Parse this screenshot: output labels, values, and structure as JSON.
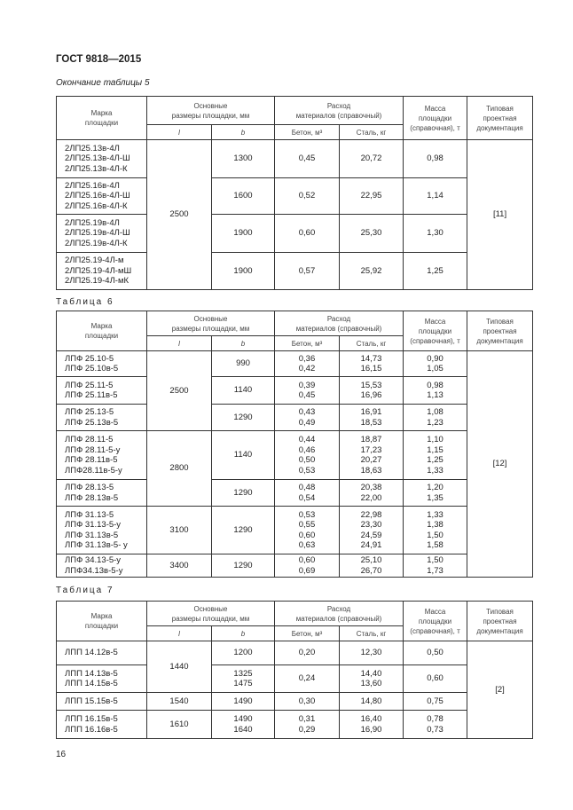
{
  "header": "ГОСТ 9818—2015",
  "page_number": "16",
  "columns": {
    "mark": "Марка\nплощадки",
    "dims": "Основные\nразмеры площадки, мм",
    "l": "l",
    "b": "b",
    "materials": "Расход\nматериалов (справочный)",
    "concrete": "Бетон, м³",
    "steel": "Сталь, кг",
    "mass": "Масса\nплощадки\n(справочная), т",
    "doc": "Типовая\nпроектная\nдокументация"
  },
  "tables": [
    {
      "caption": "Окончание таблицы 5",
      "rows": [
        {
          "mark": "2ЛП25.13в-4Л\n2ЛП25.13в-4Л-Ш\n2ЛП25.13в-4Л-К",
          "l": "2500",
          "l_span": 4,
          "b": "1300",
          "concrete": "0,45",
          "steel": "20,72",
          "mass": "0,98",
          "doc": "[11]",
          "doc_span": 4
        },
        {
          "mark": "2ЛП25.16в-4Л\n2ЛП25.16в-4Л-Ш\n2ЛП25.16в-4Л-К",
          "b": "1600",
          "concrete": "0,52",
          "steel": "22,95",
          "mass": "1,14"
        },
        {
          "mark": "2ЛП25.19в-4Л\n2ЛП25.19в-4Л-Ш\n2ЛП25.19в-4Л-К",
          "b": "1900",
          "concrete": "0,60",
          "steel": "25,30",
          "mass": "1,30"
        },
        {
          "mark": "2ЛП25.19-4Л-м\n2ЛП25.19-4Л-мШ\n2ЛП25.19-4Л-мК",
          "b": "1900",
          "concrete": "0,57",
          "steel": "25,92",
          "mass": "1,25"
        }
      ]
    },
    {
      "caption": "Таблица 6",
      "rows": [
        {
          "mark": "ЛПФ 25.10-5\nЛПФ 25.10в-5",
          "l": "2500",
          "l_span": 3,
          "b": "990",
          "concrete": "0,36\n0,42",
          "steel": "14,73\n16,15",
          "mass": "0,90\n1,05",
          "doc": "[12]",
          "doc_span": 7
        },
        {
          "mark": "ЛПФ 25.11-5\nЛПФ 25.11в-5",
          "b": "1140",
          "concrete": "0,39\n0,45",
          "steel": "15,53\n16,96",
          "mass": "0,98\n1,13"
        },
        {
          "mark": "ЛПФ 25.13-5\nЛПФ 25.13в-5",
          "b": "1290",
          "concrete": "0,43\n0,49",
          "steel": "16,91\n18,53",
          "mass": "1,08\n1,23"
        },
        {
          "mark": "ЛПФ 28.11-5\nЛПФ 28.11-5-у\nЛПФ 28.11в-5\nЛПФ28.11в-5-у",
          "l": "2800",
          "l_span": 2,
          "b": "1140",
          "concrete": "0,44\n0,46\n0,50\n0,53",
          "steel": "18,87\n17,23\n20,27\n18,63",
          "mass": "1,10\n1,15\n1,25\n1,33"
        },
        {
          "mark": "ЛПФ 28.13-5\nЛПФ 28.13в-5",
          "b": "1290",
          "concrete": "0,48\n0,54",
          "steel": "20,38\n22,00",
          "mass": "1,20\n1,35"
        },
        {
          "mark": "ЛПФ 31.13-5\nЛПФ 31.13-5-у\nЛПФ 31.13в-5\nЛПФ 31.13в-5- у",
          "l": "3100",
          "l_span": 1,
          "b": "1290",
          "concrete": "0,53\n0,55\n0,60\n0,63",
          "steel": "22,98\n23,30\n24,59\n24,91",
          "mass": "1,33\n1,38\n1,50\n1,58"
        },
        {
          "mark": "ЛПФ 34.13-5-у\nЛПФ34.13в-5-у",
          "l": "3400",
          "l_span": 1,
          "b": "1290",
          "concrete": "0,60\n0,69",
          "steel": "25,10\n26,70",
          "mass": "1,50\n1,73"
        }
      ]
    },
    {
      "caption": "Таблица 7",
      "rows": [
        {
          "mark": "ЛПП 14.12в-5",
          "l": "1440",
          "l_span": 2,
          "b": "1200",
          "concrete": "0,20",
          "steel": "12,30",
          "mass": "0,50",
          "doc": "[2]",
          "doc_span": 4
        },
        {
          "mark": "ЛПП 14.13в-5\nЛПП 14.15в-5",
          "b": "1325\n1475",
          "concrete": "0,24",
          "steel": "14,40\n13,60",
          "mass": "0,60"
        },
        {
          "mark": "ЛПП 15.15в-5",
          "l": "1540",
          "l_span": 1,
          "b": "1490",
          "concrete": "0,30",
          "steel": "14,80",
          "mass": "0,75"
        },
        {
          "mark": "ЛПП 16.15в-5\nЛПП 16.16в-5",
          "l": "1610",
          "l_span": 1,
          "b": "1490\n1640",
          "concrete": "0,31\n0,29",
          "steel": "16,40\n16,90",
          "mass": "0,78\n0,73"
        }
      ]
    }
  ]
}
